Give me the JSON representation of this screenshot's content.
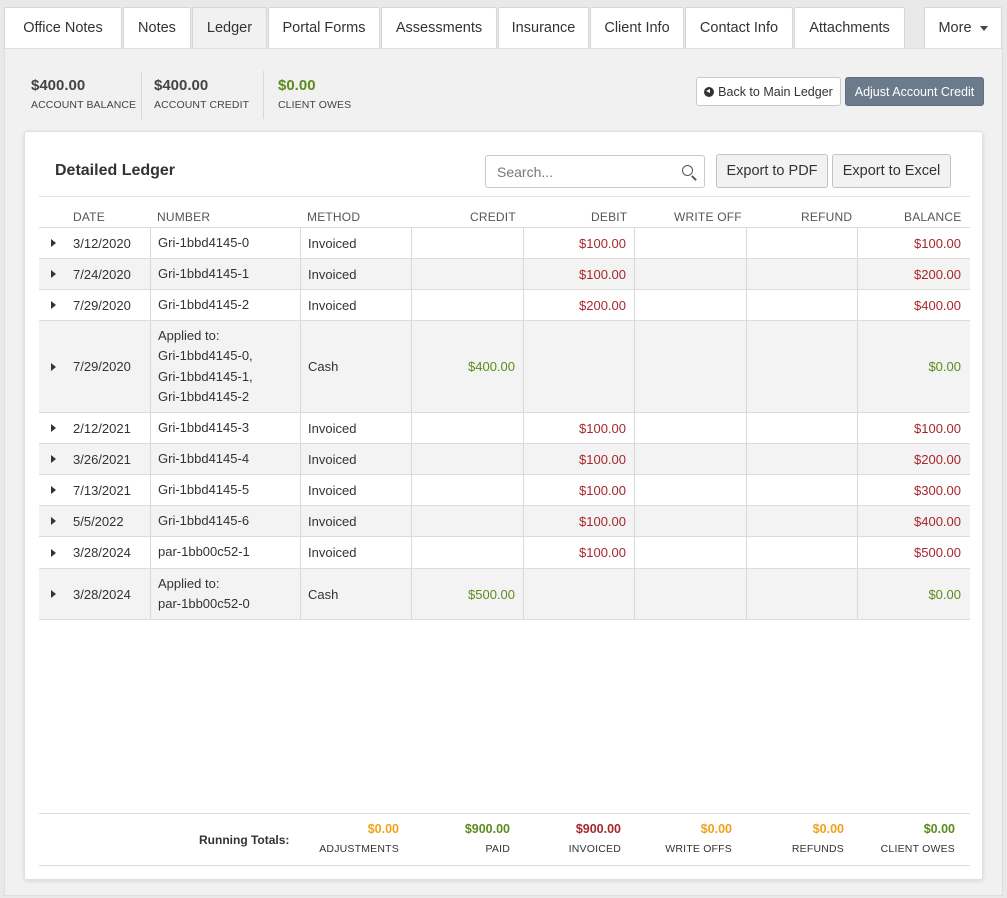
{
  "tabs": [
    {
      "label": "Office Notes"
    },
    {
      "label": "Notes"
    },
    {
      "label": "Ledger"
    },
    {
      "label": "Portal Forms"
    },
    {
      "label": "Assessments"
    },
    {
      "label": "Insurance"
    },
    {
      "label": "Client Info"
    },
    {
      "label": "Contact Info"
    },
    {
      "label": "Attachments"
    },
    {
      "label": "More"
    }
  ],
  "active_tab": "Ledger",
  "summary": {
    "account_balance": {
      "amount": "$400.00",
      "label": "ACCOUNT BALANCE"
    },
    "account_credit": {
      "amount": "$400.00",
      "label": "ACCOUNT CREDIT"
    },
    "client_owes": {
      "amount": "$0.00",
      "label": "CLIENT OWES"
    }
  },
  "actions": {
    "back_label": "Back to Main Ledger",
    "adjust_label": "Adjust Account Credit"
  },
  "ledger": {
    "title": "Detailed Ledger",
    "search_placeholder": "Search...",
    "export_pdf": "Export to PDF",
    "export_excel": "Export to Excel",
    "columns": {
      "date": "DATE",
      "number": "NUMBER",
      "method": "METHOD",
      "credit": "CREDIT",
      "debit": "DEBIT",
      "write_off": "WRITE OFF",
      "refund": "REFUND",
      "balance": "BALANCE"
    },
    "rows": [
      {
        "date": "3/12/2020",
        "number": [
          "Gri-1bbd4145-0"
        ],
        "method": "Invoiced",
        "credit": "",
        "debit": "$100.00",
        "write_off": "",
        "refund": "",
        "balance": "$100.00",
        "balance_color": "red"
      },
      {
        "date": "7/24/2020",
        "number": [
          "Gri-1bbd4145-1"
        ],
        "method": "Invoiced",
        "credit": "",
        "debit": "$100.00",
        "write_off": "",
        "refund": "",
        "balance": "$200.00",
        "balance_color": "red"
      },
      {
        "date": "7/29/2020",
        "number": [
          "Gri-1bbd4145-2"
        ],
        "method": "Invoiced",
        "credit": "",
        "debit": "$200.00",
        "write_off": "",
        "refund": "",
        "balance": "$400.00",
        "balance_color": "red"
      },
      {
        "date": "7/29/2020",
        "number": [
          "Applied to:",
          "Gri-1bbd4145-0,",
          "Gri-1bbd4145-1,",
          "Gri-1bbd4145-2"
        ],
        "method": "Cash",
        "credit": "$400.00",
        "debit": "",
        "write_off": "",
        "refund": "",
        "balance": "$0.00",
        "balance_color": "green"
      },
      {
        "date": "2/12/2021",
        "number": [
          "Gri-1bbd4145-3"
        ],
        "method": "Invoiced",
        "credit": "",
        "debit": "$100.00",
        "write_off": "",
        "refund": "",
        "balance": "$100.00",
        "balance_color": "red"
      },
      {
        "date": "3/26/2021",
        "number": [
          "Gri-1bbd4145-4"
        ],
        "method": "Invoiced",
        "credit": "",
        "debit": "$100.00",
        "write_off": "",
        "refund": "",
        "balance": "$200.00",
        "balance_color": "red"
      },
      {
        "date": "7/13/2021",
        "number": [
          "Gri-1bbd4145-5"
        ],
        "method": "Invoiced",
        "credit": "",
        "debit": "$100.00",
        "write_off": "",
        "refund": "",
        "balance": "$300.00",
        "balance_color": "red"
      },
      {
        "date": "5/5/2022",
        "number": [
          "Gri-1bbd4145-6"
        ],
        "method": "Invoiced",
        "credit": "",
        "debit": "$100.00",
        "write_off": "",
        "refund": "",
        "balance": "$400.00",
        "balance_color": "red"
      },
      {
        "date": "3/28/2024",
        "number": [
          "par-1bb00c52-1"
        ],
        "method": "Invoiced",
        "credit": "",
        "debit": "$100.00",
        "write_off": "",
        "refund": "",
        "balance": "$500.00",
        "balance_color": "red"
      },
      {
        "date": "3/28/2024",
        "number": [
          "Applied to:",
          "par-1bb00c52-0"
        ],
        "method": "Cash",
        "credit": "$500.00",
        "debit": "",
        "write_off": "",
        "refund": "",
        "balance": "$0.00",
        "balance_color": "green"
      }
    ],
    "totals": {
      "label": "Running Totals:",
      "items": [
        {
          "value": "$0.00",
          "label": "ADJUSTMENTS",
          "color": "#f0a21b"
        },
        {
          "value": "$900.00",
          "label": "PAID",
          "color": "#5b8c1e"
        },
        {
          "value": "$900.00",
          "label": "INVOICED",
          "color": "#a8272b"
        },
        {
          "value": "$0.00",
          "label": "WRITE OFFS",
          "color": "#f0a21b"
        },
        {
          "value": "$0.00",
          "label": "REFUNDS",
          "color": "#f0a21b"
        },
        {
          "value": "$0.00",
          "label": "CLIENT OWES",
          "color": "#5b8c1e"
        }
      ]
    }
  }
}
